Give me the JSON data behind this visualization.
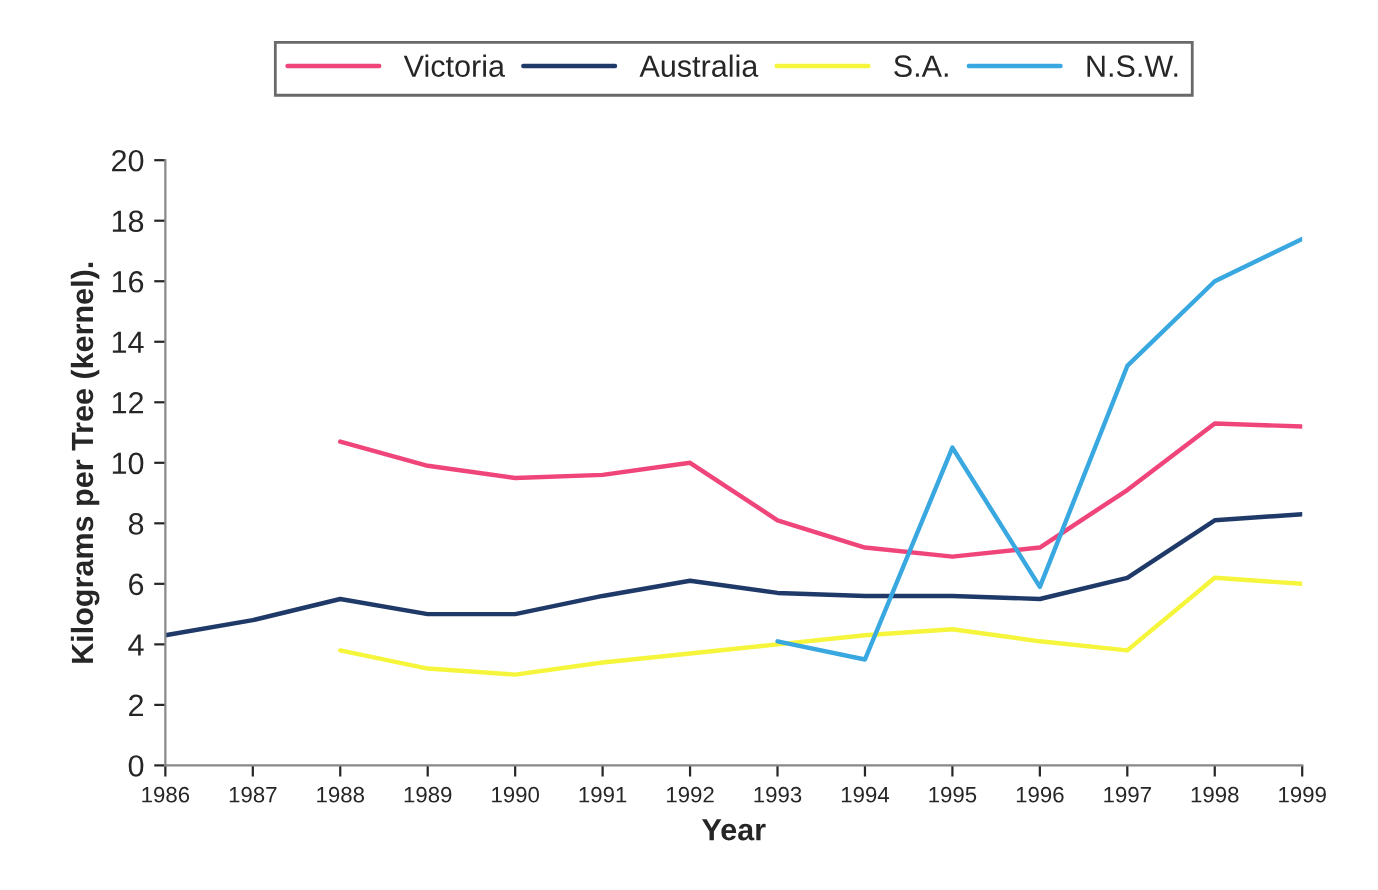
{
  "chart_data": {
    "type": "line",
    "xlabel": "Year",
    "ylabel": "Kilograms per Tree (kernel).",
    "x": [
      1986,
      1987,
      1988,
      1989,
      1990,
      1991,
      1992,
      1993,
      1994,
      1995,
      1996,
      1997,
      1998,
      1999
    ],
    "series": [
      {
        "name": "Victoria",
        "color": "#f0457a",
        "values": [
          null,
          null,
          10.7,
          9.9,
          9.5,
          9.6,
          10.0,
          8.1,
          7.2,
          6.9,
          7.2,
          9.1,
          11.3,
          11.2
        ]
      },
      {
        "name": "Australia",
        "color": "#1f3a68",
        "values": [
          4.3,
          4.8,
          5.5,
          5.0,
          5.0,
          5.6,
          6.1,
          5.7,
          5.6,
          5.6,
          5.5,
          6.2,
          8.1,
          8.3
        ]
      },
      {
        "name": "S.A.",
        "color": "#f5f53c",
        "values": [
          null,
          null,
          3.8,
          3.2,
          3.0,
          3.4,
          3.7,
          4.0,
          4.3,
          4.5,
          4.1,
          3.8,
          6.2,
          6.0
        ]
      },
      {
        "name": "N.S.W.",
        "color": "#3aa8e0",
        "values": [
          null,
          null,
          null,
          null,
          null,
          null,
          null,
          4.1,
          3.5,
          10.5,
          5.9,
          13.2,
          16.0,
          17.4
        ]
      }
    ],
    "xlim": [
      1986,
      1999
    ],
    "xticks": [
      1986,
      1987,
      1988,
      1989,
      1990,
      1991,
      1992,
      1993,
      1994,
      1995,
      1996,
      1997,
      1998,
      1999
    ],
    "ylim": [
      0,
      20
    ],
    "yticks": [
      0,
      2,
      4,
      6,
      8,
      10,
      12,
      14,
      16,
      18,
      20
    ],
    "grid": false,
    "legend": "top",
    "marker": "none",
    "line_style": "solid"
  }
}
